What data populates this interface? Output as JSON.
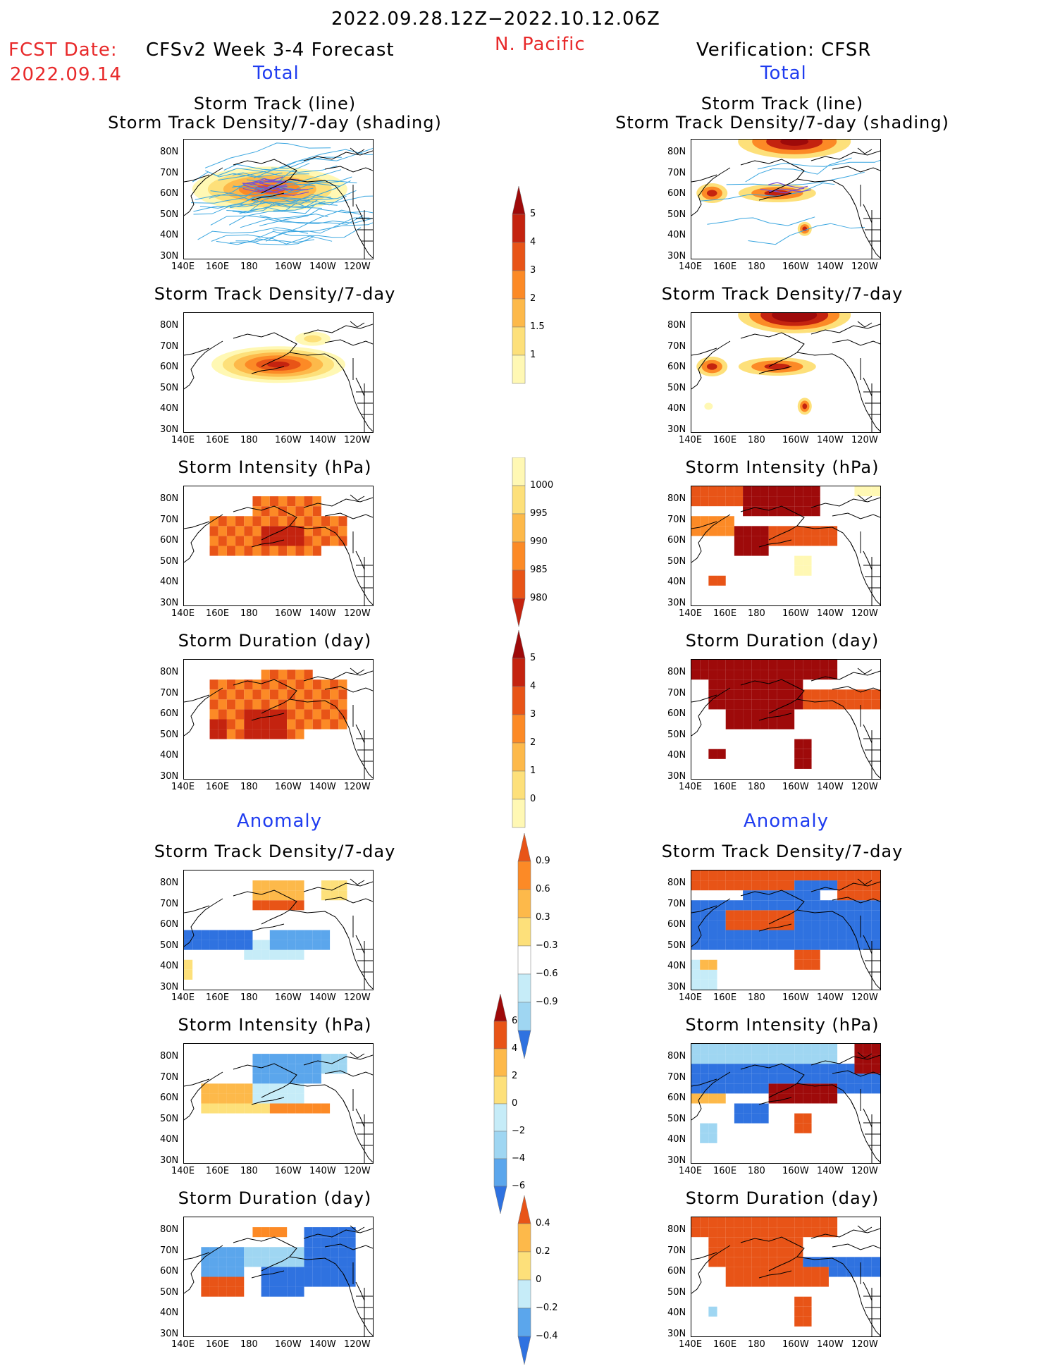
{
  "header": {
    "period": "2022.09.28.12Z−2022.10.12.06Z",
    "region": "N. Pacific",
    "fcst_label": "FCST Date:",
    "fcst_date": "2022.09.14",
    "left_title": "CFSv2 Week 3-4 Forecast",
    "right_title": "Verification: CFSR",
    "total_label": "Total",
    "anomaly_label": "Anomaly"
  },
  "axes": {
    "lat_ticks": [
      "80N",
      "70N",
      "60N",
      "50N",
      "40N",
      "30N"
    ],
    "lon_ticks": [
      "140E",
      "160E",
      "180",
      "160W",
      "140W",
      "120W"
    ]
  },
  "panel_titles": {
    "track_line": "Storm Track (line)",
    "track_shading": "Storm Track Density/7-day (shading)",
    "density": "Storm Track Density/7-day",
    "intensity": "Storm Intensity (hPa)",
    "duration": "Storm Duration (day)"
  },
  "colorbars": {
    "density_total": [
      "5",
      "4",
      "3",
      "2",
      "1.5",
      "1"
    ],
    "intensity_total": [
      "1000",
      "995",
      "990",
      "985",
      "980"
    ],
    "duration_total": [
      "5",
      "4",
      "3",
      "2",
      "1",
      "0"
    ],
    "density_anom": [
      "0.9",
      "0.6",
      "0.3",
      "−0.3",
      "−0.6",
      "−0.9"
    ],
    "intensity_anom": [
      "6",
      "4",
      "2",
      "0",
      "−2",
      "−4",
      "−6"
    ],
    "duration_anom": [
      "0.4",
      "0.2",
      "0",
      "−0.2",
      "−0.4"
    ]
  },
  "colors": {
    "warm": [
      "#fff8b4",
      "#fde07a",
      "#fdb94a",
      "#fc8a26",
      "#e85417",
      "#c4230f",
      "#9e0a0a"
    ],
    "cool": [
      "#c6ecf8",
      "#9fd6f2",
      "#5ba6ec",
      "#2f72e0",
      "#1749c8"
    ],
    "track_lines": "#3aa6e0",
    "track_mean": "#7a4fd0"
  }
}
